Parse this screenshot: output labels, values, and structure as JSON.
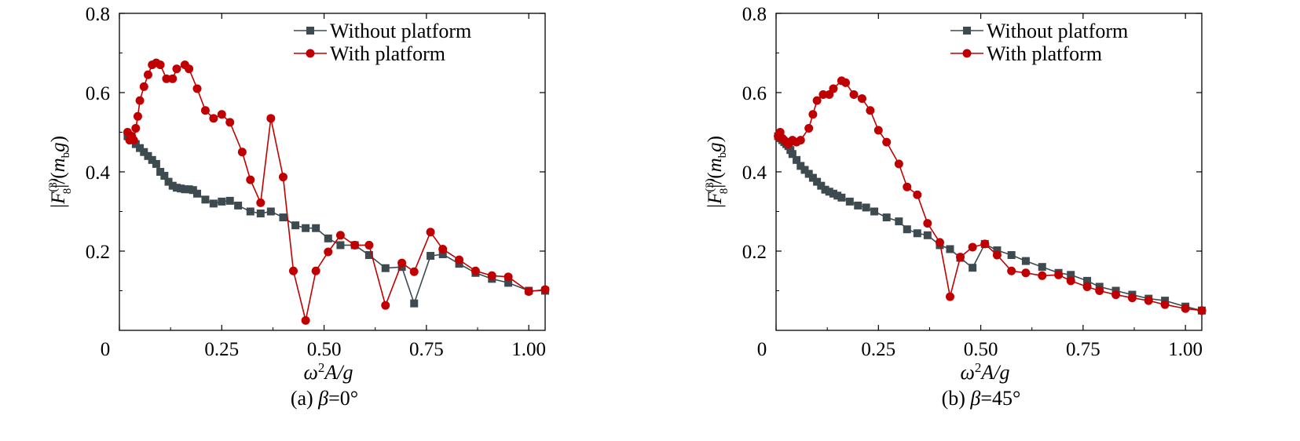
{
  "chart_data": [
    {
      "type": "line",
      "caption_prefix": "(a) ",
      "caption_var": "β",
      "caption_value": "=0°",
      "xlabel": "ω²A/g",
      "ylabel": "|F8(3)|/(mbg)",
      "xlim": [
        0,
        1.04
      ],
      "ylim": [
        0,
        0.8
      ],
      "xticks": [
        0,
        0.25,
        0.5,
        0.75,
        1.0
      ],
      "xtick_labels": [
        "0",
        "0.25",
        "0.50",
        "0.75",
        "1.00"
      ],
      "yticks": [
        0.2,
        0.4,
        0.6,
        0.8
      ],
      "ytick_labels": [
        "0.2",
        "0.4",
        "0.6",
        "0.8"
      ],
      "legend_position": "top-right",
      "grid": false,
      "series": [
        {
          "name": "Without platform",
          "color": "#3d4a50",
          "marker": "square",
          "x": [
            0.02,
            0.03,
            0.04,
            0.05,
            0.06,
            0.07,
            0.08,
            0.09,
            0.1,
            0.11,
            0.12,
            0.13,
            0.14,
            0.15,
            0.16,
            0.17,
            0.18,
            0.19,
            0.21,
            0.23,
            0.25,
            0.27,
            0.29,
            0.32,
            0.345,
            0.37,
            0.4,
            0.43,
            0.455,
            0.48,
            0.51,
            0.54,
            0.575,
            0.61,
            0.65,
            0.69,
            0.72,
            0.76,
            0.79,
            0.83,
            0.87,
            0.91,
            0.95,
            1.0,
            1.04
          ],
          "y": [
            0.49,
            0.48,
            0.47,
            0.46,
            0.45,
            0.44,
            0.43,
            0.42,
            0.4,
            0.39,
            0.375,
            0.365,
            0.36,
            0.358,
            0.356,
            0.356,
            0.354,
            0.345,
            0.33,
            0.32,
            0.325,
            0.327,
            0.315,
            0.3,
            0.295,
            0.3,
            0.285,
            0.265,
            0.258,
            0.258,
            0.232,
            0.215,
            0.215,
            0.19,
            0.157,
            0.16,
            0.068,
            0.188,
            0.192,
            0.168,
            0.145,
            0.13,
            0.12,
            0.1,
            0.1
          ]
        },
        {
          "name": "With platform",
          "color": "#c00000",
          "marker": "circle",
          "x": [
            0.02,
            0.025,
            0.03,
            0.035,
            0.04,
            0.045,
            0.05,
            0.06,
            0.07,
            0.08,
            0.09,
            0.1,
            0.115,
            0.13,
            0.14,
            0.16,
            0.17,
            0.19,
            0.21,
            0.23,
            0.25,
            0.27,
            0.3,
            0.32,
            0.345,
            0.37,
            0.4,
            0.425,
            0.455,
            0.48,
            0.51,
            0.54,
            0.575,
            0.61,
            0.65,
            0.69,
            0.72,
            0.76,
            0.79,
            0.83,
            0.87,
            0.91,
            0.95,
            1.0,
            1.04
          ],
          "y": [
            0.5,
            0.48,
            0.49,
            0.48,
            0.51,
            0.54,
            0.58,
            0.615,
            0.645,
            0.67,
            0.675,
            0.67,
            0.635,
            0.635,
            0.66,
            0.67,
            0.66,
            0.61,
            0.555,
            0.535,
            0.545,
            0.525,
            0.45,
            0.38,
            0.322,
            0.535,
            0.387,
            0.15,
            0.025,
            0.15,
            0.198,
            0.24,
            0.215,
            0.215,
            0.063,
            0.17,
            0.148,
            0.248,
            0.205,
            0.178,
            0.15,
            0.138,
            0.135,
            0.098,
            0.103
          ]
        }
      ]
    },
    {
      "type": "line",
      "caption_prefix": "(b) ",
      "caption_var": "β",
      "caption_value": "=45°",
      "xlabel": "ω²A/g",
      "ylabel": "|F8(3)|/(mbg)",
      "xlim": [
        0,
        1.04
      ],
      "ylim": [
        0,
        0.8
      ],
      "xticks": [
        0,
        0.25,
        0.5,
        0.75,
        1.0
      ],
      "xtick_labels": [
        "0",
        "0.25",
        "0.50",
        "0.75",
        "1.00"
      ],
      "yticks": [
        0.2,
        0.4,
        0.6,
        0.8
      ],
      "ytick_labels": [
        "0.2",
        "0.4",
        "0.6",
        "0.8"
      ],
      "legend_position": "top-right",
      "grid": false,
      "series": [
        {
          "name": "Without platform",
          "color": "#3d4a50",
          "marker": "square",
          "x": [
            0.005,
            0.01,
            0.015,
            0.02,
            0.025,
            0.03,
            0.035,
            0.04,
            0.05,
            0.06,
            0.07,
            0.08,
            0.09,
            0.1,
            0.11,
            0.12,
            0.13,
            0.14,
            0.15,
            0.16,
            0.18,
            0.2,
            0.22,
            0.24,
            0.27,
            0.3,
            0.32,
            0.345,
            0.37,
            0.4,
            0.425,
            0.45,
            0.48,
            0.51,
            0.54,
            0.575,
            0.61,
            0.65,
            0.69,
            0.72,
            0.76,
            0.79,
            0.83,
            0.87,
            0.91,
            0.95,
            1.0,
            1.04
          ],
          "y": [
            0.49,
            0.485,
            0.48,
            0.475,
            0.47,
            0.465,
            0.455,
            0.445,
            0.43,
            0.415,
            0.405,
            0.395,
            0.385,
            0.375,
            0.365,
            0.355,
            0.35,
            0.345,
            0.34,
            0.335,
            0.325,
            0.315,
            0.31,
            0.3,
            0.285,
            0.275,
            0.255,
            0.245,
            0.24,
            0.215,
            0.205,
            0.183,
            0.158,
            0.218,
            0.202,
            0.19,
            0.175,
            0.16,
            0.145,
            0.14,
            0.125,
            0.11,
            0.1,
            0.09,
            0.08,
            0.075,
            0.06,
            0.05
          ]
        },
        {
          "name": "With platform",
          "color": "#c00000",
          "marker": "circle",
          "x": [
            0.005,
            0.01,
            0.015,
            0.02,
            0.025,
            0.03,
            0.035,
            0.04,
            0.05,
            0.06,
            0.08,
            0.09,
            0.1,
            0.115,
            0.13,
            0.14,
            0.16,
            0.17,
            0.19,
            0.21,
            0.23,
            0.25,
            0.27,
            0.3,
            0.32,
            0.345,
            0.37,
            0.4,
            0.425,
            0.45,
            0.48,
            0.51,
            0.54,
            0.575,
            0.61,
            0.65,
            0.69,
            0.72,
            0.76,
            0.79,
            0.83,
            0.87,
            0.91,
            0.95,
            1.0,
            1.04
          ],
          "y": [
            0.49,
            0.5,
            0.485,
            0.48,
            0.475,
            0.47,
            0.475,
            0.48,
            0.475,
            0.48,
            0.51,
            0.545,
            0.58,
            0.595,
            0.595,
            0.61,
            0.63,
            0.625,
            0.595,
            0.585,
            0.555,
            0.505,
            0.475,
            0.42,
            0.362,
            0.342,
            0.27,
            0.222,
            0.085,
            0.185,
            0.21,
            0.218,
            0.19,
            0.15,
            0.145,
            0.138,
            0.14,
            0.125,
            0.11,
            0.1,
            0.09,
            0.082,
            0.075,
            0.065,
            0.055,
            0.05
          ]
        }
      ]
    }
  ]
}
